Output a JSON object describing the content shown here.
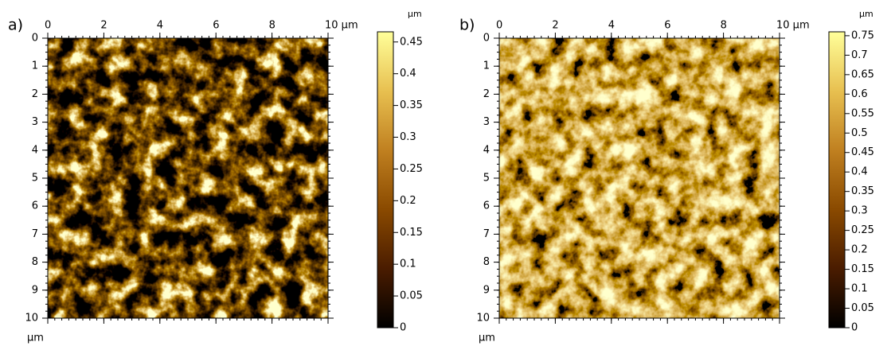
{
  "chart_data": [
    {
      "type": "image",
      "panel_label": "a)",
      "xlim": [
        0,
        10
      ],
      "ylim": [
        0,
        10
      ],
      "xticks": [
        0,
        2,
        4,
        6,
        8,
        {
          "value": 10,
          "label": "10 μm"
        }
      ],
      "yticks": [
        0,
        1,
        2,
        3,
        4,
        5,
        6,
        7,
        8,
        9,
        10
      ],
      "y_unit": "μm",
      "colorbar_unit": "μm",
      "colorbar_lim": [
        0,
        0.466
      ],
      "colorbar_ticks": [
        0,
        0.05,
        0.1,
        0.15,
        0.2,
        0.25,
        0.3,
        0.35,
        0.4,
        0.45
      ],
      "colormap": [
        "#000000",
        "#4a1c00",
        "#8a4a00",
        "#c08020",
        "#e8c050",
        "#ffff9a"
      ]
    },
    {
      "type": "image",
      "panel_label": "b)",
      "xlim": [
        0,
        10
      ],
      "ylim": [
        0,
        10
      ],
      "xticks": [
        0,
        2,
        4,
        6,
        8,
        {
          "value": 10,
          "label": "10 μm"
        }
      ],
      "yticks": [
        0,
        1,
        2,
        3,
        4,
        5,
        6,
        7,
        8,
        9,
        10
      ],
      "y_unit": "μm",
      "colorbar_unit": "μm",
      "colorbar_lim": [
        0,
        0.76
      ],
      "colorbar_ticks": [
        0,
        0.05,
        0.1,
        0.15,
        0.2,
        0.25,
        0.3,
        0.35,
        0.4,
        0.45,
        0.5,
        0.55,
        0.6,
        0.65,
        0.7,
        0.75
      ],
      "colormap": [
        "#000000",
        "#4a1c00",
        "#8a4a00",
        "#c08020",
        "#e8c050",
        "#ffff9a"
      ]
    }
  ]
}
